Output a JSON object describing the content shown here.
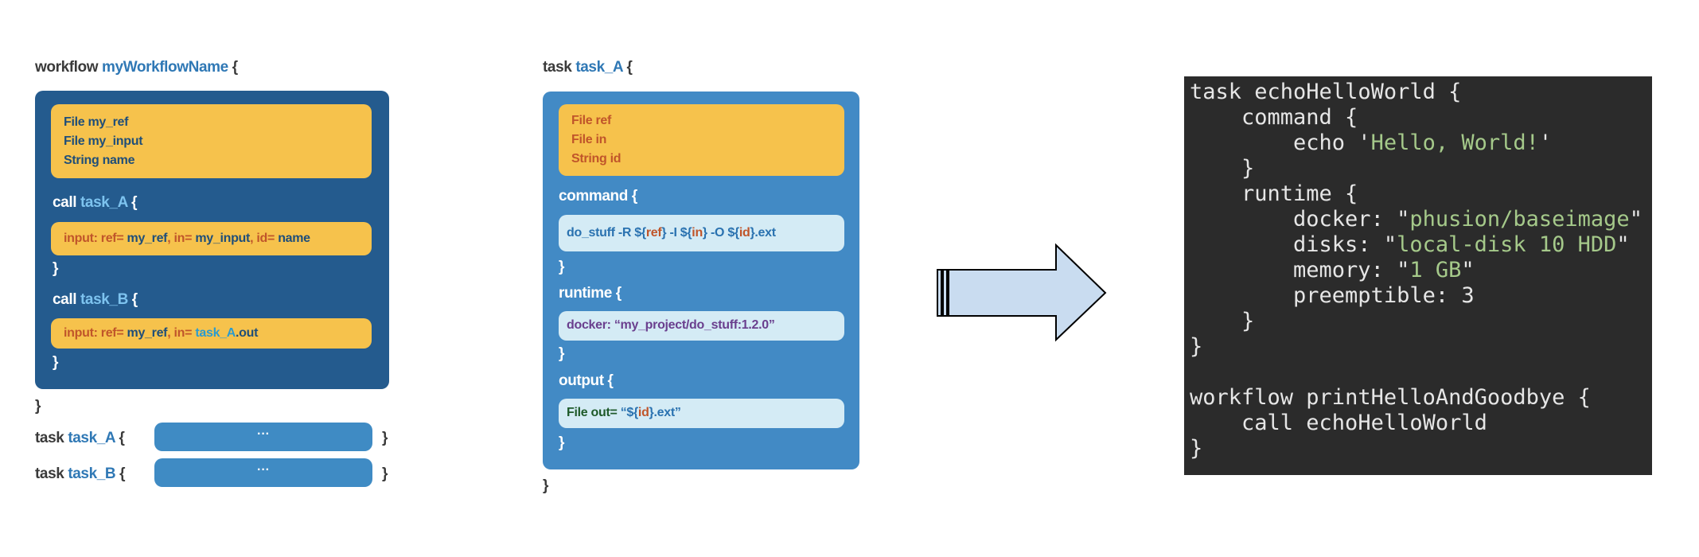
{
  "workflow_panel": {
    "header": {
      "keyword": "workflow",
      "name": "myWorkflowName",
      "brace": "{"
    },
    "inputs": [
      "File my_ref",
      "File my_input",
      "String name"
    ],
    "call_a": {
      "keyword": "call",
      "name": "task_A",
      "brace": "{",
      "line": [
        "input: ref=",
        "my_ref",
        ", in=",
        "my_input",
        ", id=",
        "name"
      ],
      "close": "}"
    },
    "call_b": {
      "keyword": "call",
      "name": "task_B",
      "brace": "{",
      "line": [
        "input: ref=",
        "my_ref",
        ", in=",
        "task_A",
        ".out"
      ],
      "close": "}"
    },
    "close": "}",
    "tasks": [
      {
        "keyword": "task",
        "name": "task_A",
        "brace": "{",
        "body": "···",
        "close": "}"
      },
      {
        "keyword": "task",
        "name": "task_B",
        "brace": "{",
        "body": "···",
        "close": "}"
      }
    ]
  },
  "task_panel": {
    "header": {
      "keyword": "task",
      "name": "task_A",
      "brace": "{"
    },
    "inputs": [
      "File ref",
      "File in",
      "String id"
    ],
    "command": {
      "head": "command {",
      "line": [
        "do_stuff -R ${",
        "ref",
        "} -I ${",
        "in",
        "} -O ${",
        "id",
        "}.ext"
      ],
      "close": "}"
    },
    "runtime": {
      "head": "runtime {",
      "line": "docker: “my_project/do_stuff:1.2.0”",
      "close": "}"
    },
    "output": {
      "head": "output {",
      "line": [
        "File out=",
        "“${",
        "id",
        "}.ext”"
      ],
      "close": "}"
    },
    "close": "}"
  },
  "code": {
    "lines": [
      [
        "task echoHelloWorld {"
      ],
      [
        "command {"
      ],
      [
        "echo '",
        "Hello, World!",
        "'"
      ],
      [
        "}"
      ],
      [
        "runtime {"
      ],
      [
        "docker: \"",
        "phusion/baseimage",
        "\""
      ],
      [
        "disks: \"",
        "local-disk 10 HDD",
        "\""
      ],
      [
        "memory: \"",
        "1 GB",
        "\""
      ],
      [
        "preemptible: 3"
      ],
      [
        "}"
      ],
      [
        "}"
      ],
      [
        "workflow printHelloAndGoodbye {"
      ],
      [
        "call echoHelloWorld"
      ],
      [
        "}"
      ]
    ]
  }
}
